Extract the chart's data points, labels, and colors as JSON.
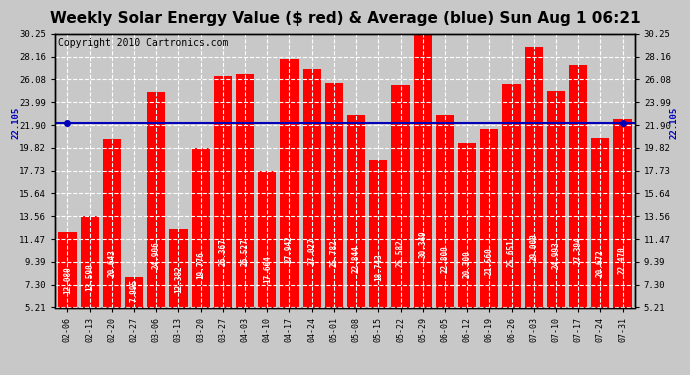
{
  "title": "Weekly Solar Energy Value ($ red) & Average (blue) Sun Aug 1 06:21",
  "copyright": "Copyright 2010 Cartronics.com",
  "categories": [
    "02-06",
    "02-13",
    "02-20",
    "02-27",
    "03-06",
    "03-13",
    "03-20",
    "03-27",
    "04-03",
    "04-10",
    "04-17",
    "04-24",
    "05-01",
    "05-08",
    "05-15",
    "05-22",
    "05-29",
    "06-05",
    "06-12",
    "06-19",
    "06-26",
    "07-03",
    "07-10",
    "07-17",
    "07-24",
    "07-31"
  ],
  "values": [
    12.08,
    13.59,
    20.643,
    7.995,
    24.906,
    12.382,
    19.776,
    26.367,
    26.527,
    17.664,
    27.942,
    27.027,
    25.782,
    22.844,
    18.743,
    25.582,
    30.349,
    22.8,
    20.3,
    21.56,
    25.651,
    29.0,
    24.993,
    27.394,
    20.672,
    22.47
  ],
  "average": 22.105,
  "bar_color": "#FF0000",
  "avg_line_color": "#0000BB",
  "background_color": "#C8C8C8",
  "plot_bg_color": "#C8C8C8",
  "grid_color": "white",
  "title_color": "#000000",
  "bar_label_color": "white",
  "ylim_min": 5.21,
  "ylim_max": 30.25,
  "yticks": [
    5.21,
    7.3,
    9.39,
    11.47,
    13.56,
    15.64,
    17.73,
    19.82,
    21.9,
    23.99,
    26.08,
    28.16,
    30.25
  ],
  "avg_label": "22.105",
  "title_fontsize": 11,
  "copyright_fontsize": 7,
  "bar_label_fontsize": 5.5
}
